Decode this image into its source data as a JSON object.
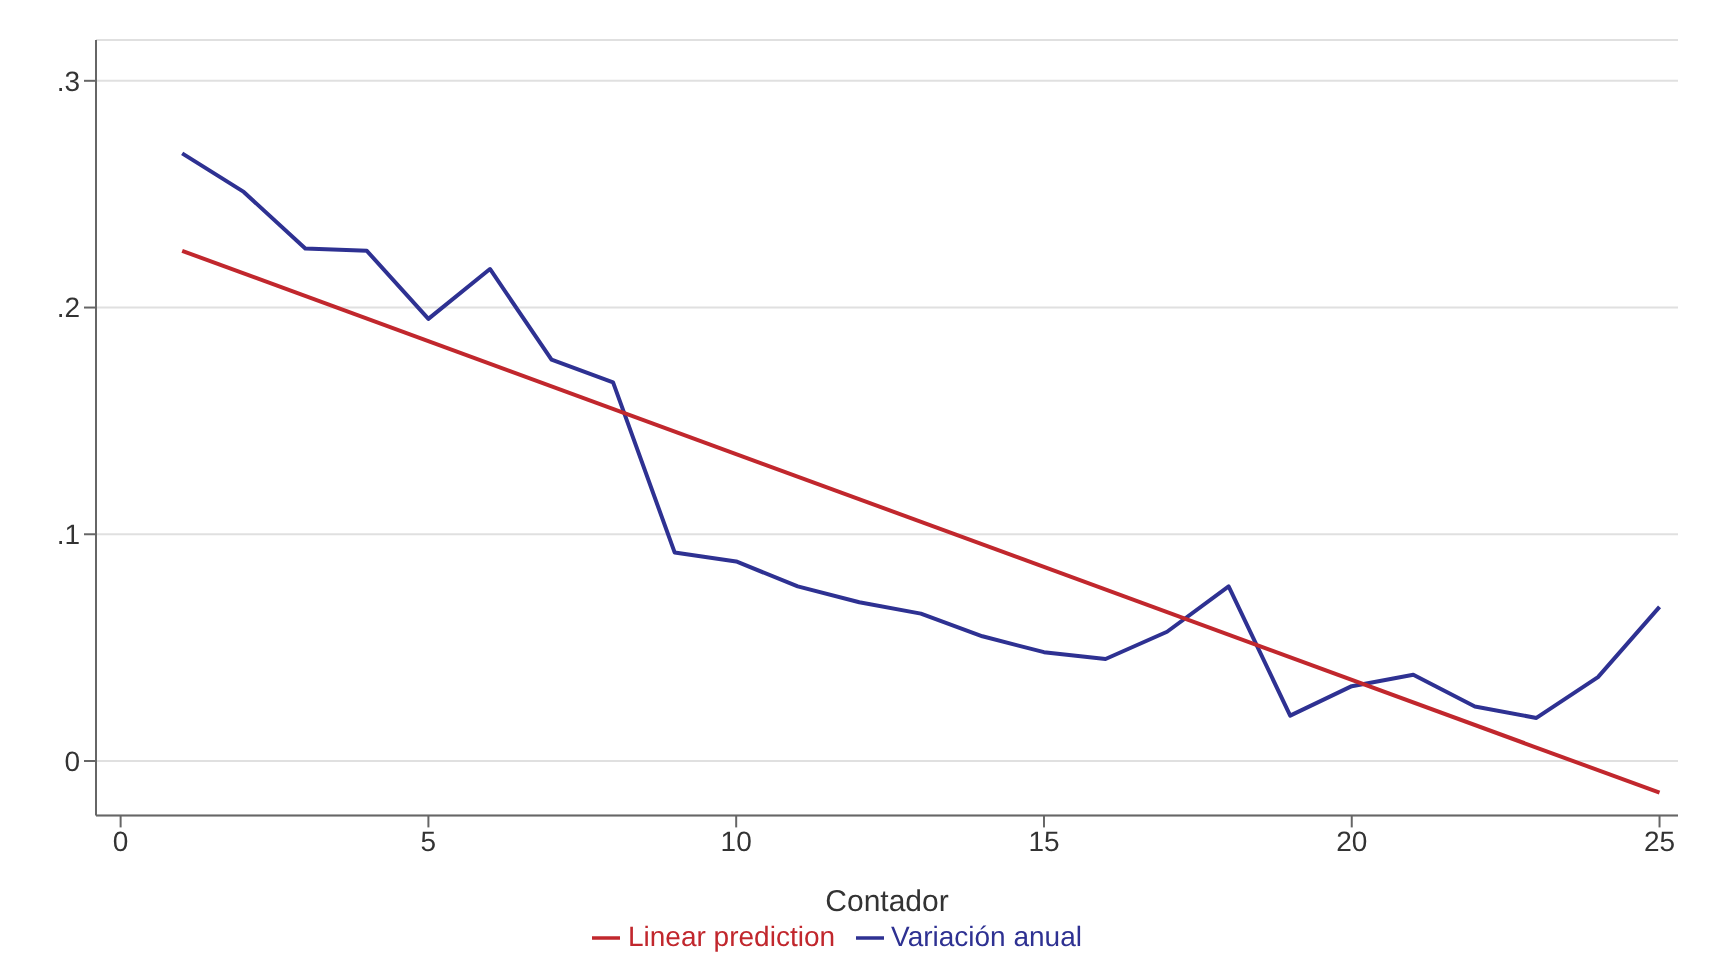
{
  "chart_data": {
    "type": "line",
    "xlabel": "Contador",
    "xlim": [
      -0.4,
      25.3
    ],
    "xticks": [
      0,
      5,
      10,
      15,
      20,
      25
    ],
    "ylim": [
      -0.024,
      0.318
    ],
    "yticks": [
      {
        "value": 0,
        "label": "0"
      },
      {
        "value": 0.1,
        "label": ".1"
      },
      {
        "value": 0.2,
        "label": ".2"
      },
      {
        "value": 0.3,
        "label": ".3"
      }
    ],
    "grid": "y",
    "legend": "bottom",
    "marker": "none",
    "line_style": "solid",
    "series": [
      {
        "name": "Variación anual",
        "color": "#2e3192",
        "x": [
          1,
          2,
          3,
          4,
          5,
          6,
          7,
          8,
          9,
          10,
          11,
          12,
          13,
          14,
          15,
          16,
          17,
          18,
          19,
          20,
          21,
          22,
          23,
          24,
          25
        ],
        "values": [
          0.268,
          0.251,
          0.226,
          0.225,
          0.195,
          0.217,
          0.177,
          0.167,
          0.092,
          0.088,
          0.077,
          0.07,
          0.065,
          0.055,
          0.048,
          0.045,
          0.057,
          0.077,
          0.02,
          0.033,
          0.038,
          0.024,
          0.019,
          0.037,
          0.068
        ]
      },
      {
        "name": "Linear prediction",
        "color": "#c1272d",
        "x": [
          1,
          25
        ],
        "values": [
          0.225,
          -0.014
        ]
      }
    ]
  }
}
